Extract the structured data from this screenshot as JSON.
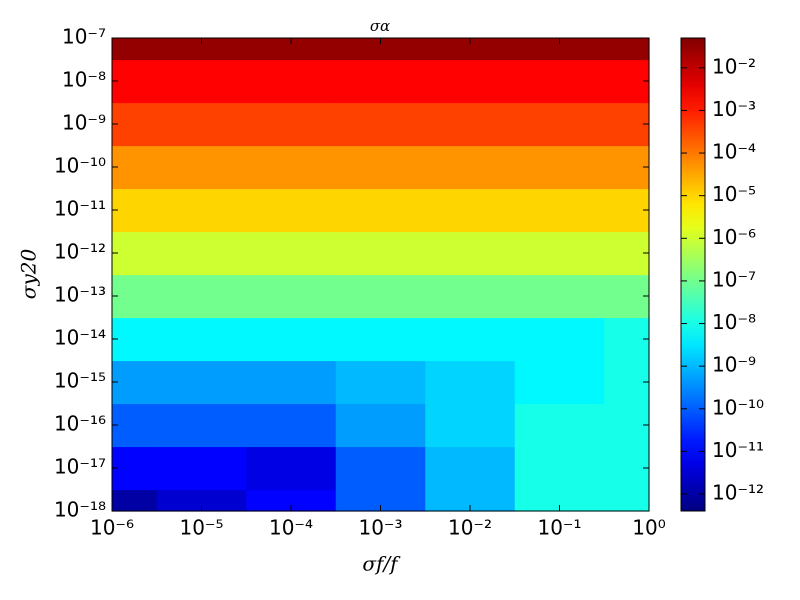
{
  "chart_data": {
    "type": "heatmap",
    "title": "σα",
    "x_label": "σf/f",
    "y_label": "σy20",
    "xscale": "log",
    "yscale": "log",
    "zscale": "log",
    "colormap": "jet",
    "x": [
      1e-06,
      1e-05,
      0.0001,
      0.001,
      0.01,
      0.1,
      1
    ],
    "y": [
      1e-18,
      1e-17,
      1e-16,
      1e-15,
      1e-14,
      1e-13,
      1e-12,
      1e-11,
      1e-10,
      1e-09,
      1e-08,
      1e-07
    ],
    "z": [
      [
        1e-12,
        3e-12,
        1e-11,
        1e-10,
        1e-09,
        1e-08,
        1e-08
      ],
      [
        1e-11,
        1e-11,
        5e-12,
        1e-10,
        1e-09,
        1e-08,
        1e-08
      ],
      [
        1e-10,
        1e-10,
        1e-10,
        5e-10,
        2e-09,
        1e-08,
        1e-08
      ],
      [
        5e-10,
        5e-10,
        5e-10,
        1e-09,
        2e-09,
        5e-09,
        1e-08
      ],
      [
        5e-09,
        5e-09,
        5e-09,
        5e-09,
        5e-09,
        5e-09,
        1e-08
      ],
      [
        1e-07,
        1e-07,
        1e-07,
        1e-07,
        1e-07,
        1e-07,
        1e-07
      ],
      [
        1e-06,
        1e-06,
        1e-06,
        1e-06,
        1e-06,
        1e-06,
        1e-06
      ],
      [
        1e-05,
        1e-05,
        1e-05,
        1e-05,
        1e-05,
        1e-05,
        1e-05
      ],
      [
        5e-05,
        5e-05,
        5e-05,
        5e-05,
        5e-05,
        5e-05,
        5e-05
      ],
      [
        0.0004,
        0.0004,
        0.0004,
        0.0004,
        0.0004,
        0.0004,
        0.0004
      ],
      [
        0.002,
        0.002,
        0.002,
        0.002,
        0.002,
        0.002,
        0.002
      ],
      [
        0.03,
        0.03,
        0.03,
        0.03,
        0.03,
        0.03,
        0.03
      ]
    ],
    "xlim": [
      1e-06,
      1
    ],
    "ylim": [
      1e-18,
      1e-07
    ],
    "zlim": [
      4e-13,
      0.05
    ],
    "xticks": [
      {
        "value": 1e-06,
        "label": "10⁻⁶"
      },
      {
        "value": 1e-05,
        "label": "10⁻⁵"
      },
      {
        "value": 0.0001,
        "label": "10⁻⁴"
      },
      {
        "value": 0.001,
        "label": "10⁻³"
      },
      {
        "value": 0.01,
        "label": "10⁻²"
      },
      {
        "value": 0.1,
        "label": "10⁻¹"
      },
      {
        "value": 1,
        "label": "10⁰"
      }
    ],
    "yticks": [
      {
        "value": 1e-18,
        "label": "10⁻¹⁸"
      },
      {
        "value": 1e-17,
        "label": "10⁻¹⁷"
      },
      {
        "value": 1e-16,
        "label": "10⁻¹⁶"
      },
      {
        "value": 1e-15,
        "label": "10⁻¹⁵"
      },
      {
        "value": 1e-14,
        "label": "10⁻¹⁴"
      },
      {
        "value": 1e-13,
        "label": "10⁻¹³"
      },
      {
        "value": 1e-12,
        "label": "10⁻¹²"
      },
      {
        "value": 1e-11,
        "label": "10⁻¹¹"
      },
      {
        "value": 1e-10,
        "label": "10⁻¹⁰"
      },
      {
        "value": 1e-09,
        "label": "10⁻⁹"
      },
      {
        "value": 1e-08,
        "label": "10⁻⁸"
      },
      {
        "value": 1e-07,
        "label": "10⁻⁷"
      }
    ],
    "zticks": [
      {
        "value": 1e-12,
        "label": "10⁻¹²"
      },
      {
        "value": 1e-11,
        "label": "10⁻¹¹"
      },
      {
        "value": 1e-10,
        "label": "10⁻¹⁰"
      },
      {
        "value": 1e-09,
        "label": "10⁻⁹"
      },
      {
        "value": 1e-08,
        "label": "10⁻⁸"
      },
      {
        "value": 1e-07,
        "label": "10⁻⁷"
      },
      {
        "value": 1e-06,
        "label": "10⁻⁶"
      },
      {
        "value": 1e-05,
        "label": "10⁻⁵"
      },
      {
        "value": 0.0001,
        "label": "10⁻⁴"
      },
      {
        "value": 0.001,
        "label": "10⁻³"
      },
      {
        "value": 0.01,
        "label": "10⁻²"
      }
    ]
  }
}
